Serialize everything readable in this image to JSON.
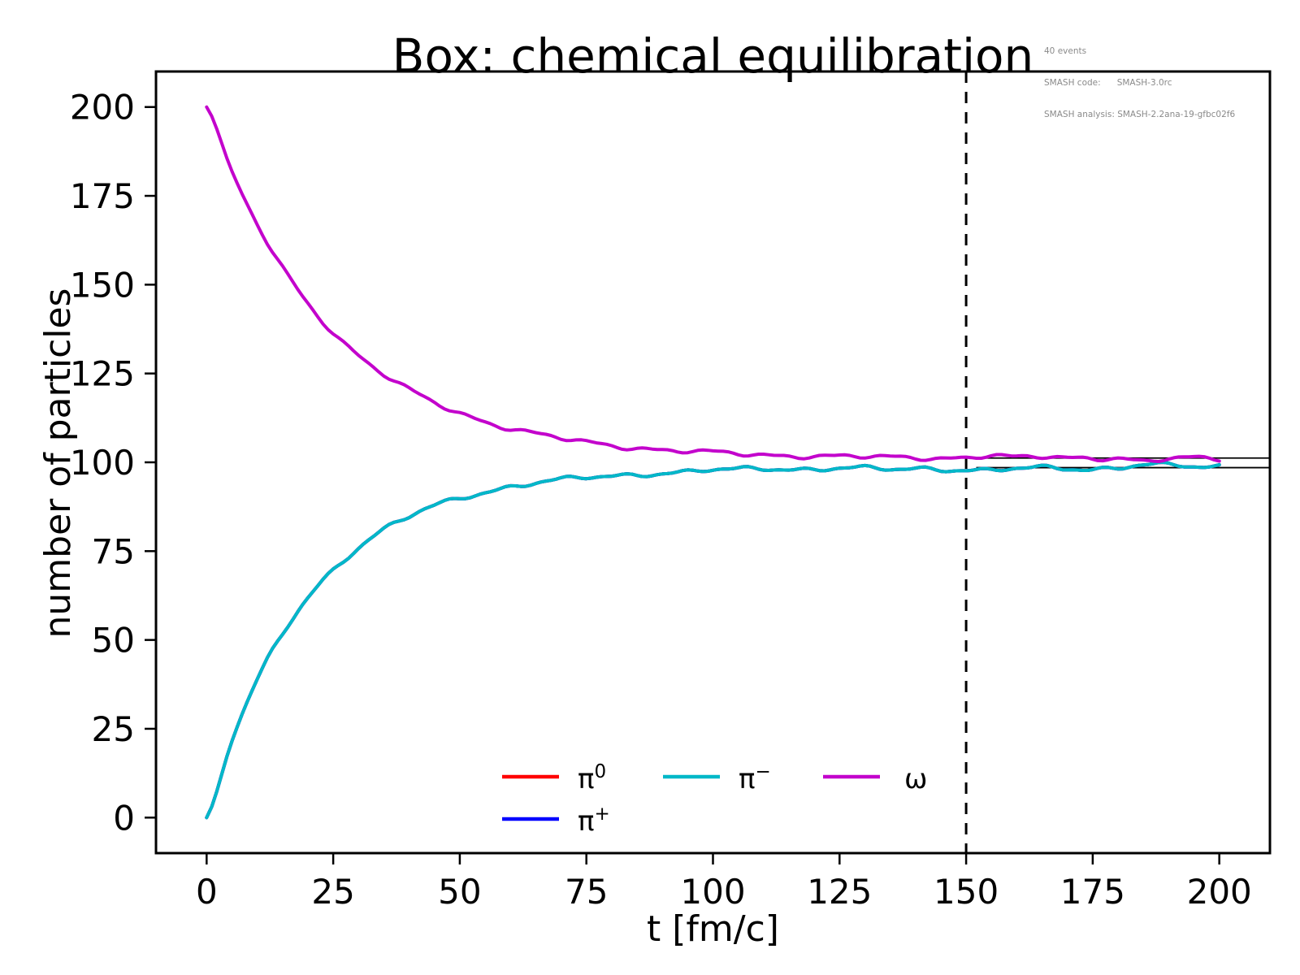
{
  "title": "Box: chemical equilibration",
  "annotation": {
    "lines": [
      "40 events",
      "SMASH code:      SMASH-3.0rc",
      "SMASH analysis: SMASH-2.2ana-19-gfbc02f6"
    ],
    "color": "#8a8a8a"
  },
  "axes": {
    "xlabel": "t [fm/c]",
    "ylabel": "number of particles",
    "xlim": [
      -10,
      210
    ],
    "ylim": [
      -10,
      210
    ],
    "xticks": [
      0,
      25,
      50,
      75,
      100,
      125,
      150,
      175,
      200
    ],
    "yticks": [
      0,
      25,
      50,
      75,
      100,
      125,
      150,
      175,
      200
    ]
  },
  "legend": {
    "items": [
      {
        "id": "pi0",
        "base": "π",
        "sup": "0",
        "color": "#ff0000",
        "col": 0,
        "row": 0
      },
      {
        "id": "pi-plus",
        "base": "π",
        "sup": "+",
        "color": "#0000ff",
        "col": 0,
        "row": 1
      },
      {
        "id": "pi-minus",
        "base": "π",
        "sup": "−",
        "color": "#00b8c8",
        "col": 1,
        "row": 0
      },
      {
        "id": "omega",
        "base": "ω",
        "sup": "",
        "color": "#c303cc",
        "col": 2,
        "row": 0
      }
    ]
  },
  "chart_data": {
    "type": "line",
    "title": "Box: chemical equilibration",
    "xlabel": "t [fm/c]",
    "ylabel": "number of particles",
    "xlim": [
      -10,
      210
    ],
    "ylim": [
      -10,
      210
    ],
    "grid": false,
    "legend_position": "lower center",
    "x": [
      0,
      5,
      10,
      15,
      20,
      25,
      30,
      35,
      40,
      45,
      50,
      55,
      60,
      65,
      70,
      75,
      80,
      85,
      90,
      95,
      100,
      105,
      110,
      115,
      120,
      125,
      130,
      135,
      140,
      145,
      150,
      155,
      160,
      165,
      170,
      175,
      180,
      185,
      190,
      195,
      200
    ],
    "series": [
      {
        "name": "π⁰",
        "color": "#ff0000",
        "values": [
          0,
          21.7,
          38.6,
          51.7,
          61.9,
          69.9,
          76.1,
          81.0,
          84.7,
          87.7,
          90.0,
          91.7,
          93.1,
          94.2,
          95.0,
          95.7,
          96.2,
          96.6,
          97.0,
          97.2,
          97.8,
          98.0,
          98.3,
          98.2,
          98.0,
          98.4,
          98.2,
          98.0,
          98.3,
          98.1,
          98.0,
          97.6,
          98.2,
          98.4,
          98.3,
          98.2,
          98.5,
          99.4,
          99.0,
          98.7,
          98.9
        ]
      },
      {
        "name": "π⁺",
        "color": "#0000ff",
        "values": [
          0,
          21.7,
          38.6,
          51.7,
          61.9,
          69.9,
          76.1,
          81.0,
          84.7,
          87.7,
          90.0,
          91.7,
          93.1,
          94.2,
          95.0,
          95.7,
          96.2,
          96.6,
          97.0,
          97.2,
          97.8,
          98.0,
          98.3,
          98.2,
          98.0,
          98.4,
          98.2,
          98.0,
          98.3,
          98.1,
          98.0,
          97.6,
          98.2,
          98.4,
          98.3,
          98.2,
          98.5,
          99.4,
          99.0,
          98.7,
          98.9
        ]
      },
      {
        "name": "π⁻",
        "color": "#00b8c8",
        "values": [
          0,
          21.7,
          38.6,
          51.7,
          61.9,
          69.9,
          76.1,
          81.0,
          84.7,
          87.7,
          90.0,
          91.7,
          93.1,
          94.2,
          95.0,
          95.7,
          96.2,
          96.6,
          97.0,
          97.2,
          97.8,
          98.0,
          98.3,
          98.2,
          98.0,
          98.4,
          98.2,
          98.0,
          98.3,
          98.1,
          98.0,
          97.6,
          98.2,
          98.4,
          98.3,
          98.2,
          98.5,
          99.4,
          99.0,
          98.7,
          98.9
        ]
      },
      {
        "name": "ω",
        "color": "#c303cc",
        "values": [
          200,
          181.7,
          166.8,
          154.7,
          144.8,
          136.7,
          130.1,
          124.7,
          120.3,
          116.8,
          113.9,
          111.5,
          109.6,
          108.0,
          106.7,
          105.6,
          104.8,
          104.1,
          103.5,
          103.1,
          102.7,
          102.4,
          102.1,
          101.9,
          101.8,
          101.6,
          101.5,
          101.4,
          101.4,
          101.3,
          101.3,
          101.9,
          101.2,
          101.6,
          101.4,
          101.3,
          101.2,
          100.1,
          100.9,
          101.2,
          101.1
        ]
      }
    ],
    "vline": {
      "x": 150,
      "style": "dashed",
      "color": "#000000"
    },
    "avg_lines": [
      {
        "series": "ω",
        "y": 101.2,
        "from": 152,
        "to": 210,
        "color": "#000000"
      },
      {
        "series": "π",
        "y": 98.5,
        "from": 152,
        "to": 210,
        "color": "#000000"
      }
    ]
  }
}
